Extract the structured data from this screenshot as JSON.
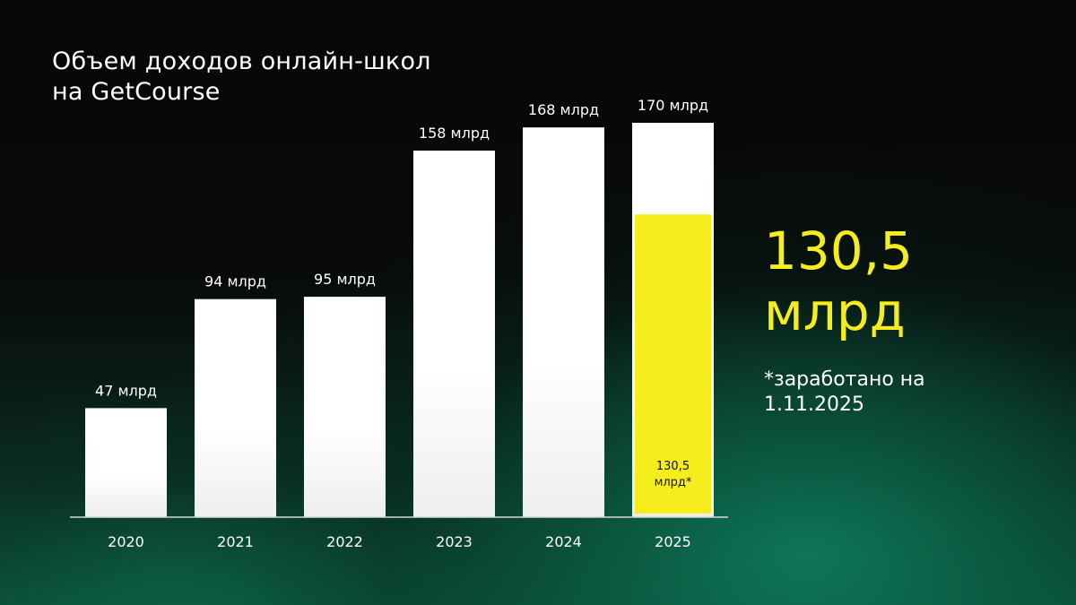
{
  "title": {
    "line1": "Объем доходов онлайн-школ",
    "line2": "на GetCourse"
  },
  "highlight": {
    "value": "130,5",
    "unit": "млрд"
  },
  "note": {
    "line1": "*заработано на",
    "line2": "1.11.2025"
  },
  "colors": {
    "bar": "#ffffff",
    "highlight": "#f6ee1c",
    "accent_green": "#0c6a4e"
  },
  "chart_data": {
    "type": "bar",
    "categories": [
      "2020",
      "2021",
      "2022",
      "2023",
      "2024",
      "2025"
    ],
    "values": [
      47,
      94,
      95,
      158,
      168,
      170
    ],
    "value_labels": [
      "47 млрд",
      "94 млрд",
      "95 млрд",
      "158 млрд",
      "168 млрд",
      "170 млрд"
    ],
    "overlay": {
      "category": "2025",
      "value": 130.5,
      "label_line1": "130,5",
      "label_line2": "млрд*"
    },
    "ylim": [
      0,
      170
    ],
    "grid": false,
    "legend": "none"
  }
}
